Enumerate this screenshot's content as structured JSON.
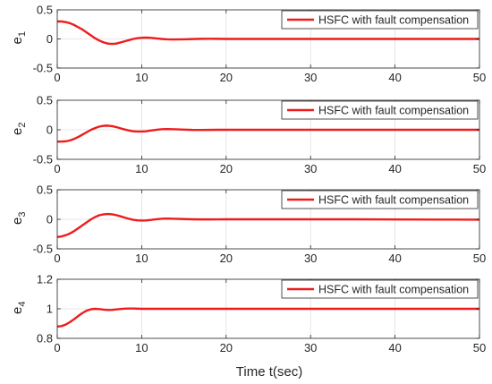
{
  "chart_data": [
    {
      "type": "line",
      "ylabel": "e",
      "ylabel_sub": "1",
      "xlim": [
        0,
        50
      ],
      "ylim": [
        -0.5,
        0.5
      ],
      "xticks": [
        "0",
        "10",
        "20",
        "30",
        "40",
        "50"
      ],
      "yticks": [
        "-0.5",
        "0",
        "0.5"
      ],
      "grid": true,
      "legend_position": "top-right",
      "series": [
        {
          "name": "HSFC with fault compensation",
          "color": "#ee1c1c",
          "x": [
            0,
            0.5,
            1,
            1.5,
            2,
            2.5,
            3,
            3.5,
            4,
            4.5,
            5,
            5.5,
            6,
            6.5,
            7,
            7.5,
            8,
            8.5,
            9,
            9.5,
            10,
            10.5,
            11,
            11.5,
            12,
            12.5,
            13,
            13.5,
            14,
            15,
            16,
            17,
            18,
            19,
            20,
            22,
            24,
            26,
            28,
            30,
            35,
            40,
            45,
            50
          ],
          "y": [
            0.3,
            0.3,
            0.29,
            0.27,
            0.24,
            0.2,
            0.16,
            0.11,
            0.06,
            0.01,
            -0.03,
            -0.06,
            -0.08,
            -0.085,
            -0.08,
            -0.06,
            -0.04,
            -0.02,
            0.0,
            0.012,
            0.02,
            0.023,
            0.02,
            0.013,
            0.005,
            -0.002,
            -0.007,
            -0.009,
            -0.009,
            -0.006,
            -0.002,
            0.002,
            0.003,
            0.002,
            0.0,
            0.0,
            0.0,
            0.0,
            0.0,
            0.0,
            0.0,
            0.0,
            0.0,
            0.0
          ]
        }
      ]
    },
    {
      "type": "line",
      "ylabel": "e",
      "ylabel_sub": "2",
      "xlim": [
        0,
        50
      ],
      "ylim": [
        -0.5,
        0.5
      ],
      "xticks": [
        "0",
        "10",
        "20",
        "30",
        "40",
        "50"
      ],
      "yticks": [
        "-0.5",
        "0",
        "0.5"
      ],
      "grid": true,
      "legend_position": "top-right",
      "series": [
        {
          "name": "HSFC with fault compensation",
          "color": "#ee1c1c",
          "x": [
            0,
            0.5,
            1,
            1.5,
            2,
            2.5,
            3,
            3.5,
            4,
            4.5,
            5,
            5.5,
            6,
            6.5,
            7,
            7.5,
            8,
            8.5,
            9,
            9.5,
            10,
            10.5,
            11,
            11.5,
            12,
            12.5,
            13,
            13.5,
            14,
            15,
            16,
            17,
            18,
            19,
            20,
            22,
            24,
            26,
            28,
            30,
            35,
            40,
            45,
            50
          ],
          "y": [
            -0.2,
            -0.2,
            -0.195,
            -0.18,
            -0.155,
            -0.12,
            -0.08,
            -0.04,
            0.0,
            0.03,
            0.055,
            0.068,
            0.07,
            0.062,
            0.045,
            0.025,
            0.005,
            -0.012,
            -0.025,
            -0.03,
            -0.03,
            -0.025,
            -0.015,
            -0.005,
            0.004,
            0.01,
            0.012,
            0.011,
            0.008,
            0.003,
            -0.002,
            -0.003,
            -0.002,
            0.0,
            0.0,
            0.0,
            0.0,
            0.0,
            0.0,
            0.0,
            0.0,
            0.0,
            0.0,
            0.0
          ]
        }
      ]
    },
    {
      "type": "line",
      "ylabel": "e",
      "ylabel_sub": "3",
      "xlim": [
        0,
        50
      ],
      "ylim": [
        -0.5,
        0.5
      ],
      "xticks": [
        "0",
        "10",
        "20",
        "30",
        "40",
        "50"
      ],
      "yticks": [
        "-0.5",
        "0",
        "0.5"
      ],
      "grid": true,
      "legend_position": "top-right",
      "series": [
        {
          "name": "HSFC with fault compensation",
          "color": "#ee1c1c",
          "x": [
            0,
            0.5,
            1,
            1.5,
            2,
            2.5,
            3,
            3.5,
            4,
            4.5,
            5,
            5.5,
            6,
            6.5,
            7,
            7.5,
            8,
            8.5,
            9,
            9.5,
            10,
            10.5,
            11,
            11.5,
            12,
            12.5,
            13,
            13.5,
            14,
            15,
            16,
            17,
            18,
            19,
            20,
            22,
            24,
            26,
            28,
            30,
            35,
            40,
            45,
            50
          ],
          "y": [
            -0.3,
            -0.29,
            -0.27,
            -0.24,
            -0.2,
            -0.15,
            -0.1,
            -0.05,
            0.0,
            0.04,
            0.07,
            0.085,
            0.09,
            0.085,
            0.07,
            0.05,
            0.028,
            0.008,
            -0.008,
            -0.018,
            -0.022,
            -0.02,
            -0.012,
            -0.003,
            0.005,
            0.01,
            0.012,
            0.011,
            0.009,
            0.004,
            0.0,
            -0.002,
            -0.002,
            -0.001,
            0.0,
            0.0,
            0.0,
            0.0,
            0.0,
            0.0,
            0.0,
            -0.003,
            -0.005,
            -0.006
          ]
        }
      ]
    },
    {
      "type": "line",
      "ylabel": "e",
      "ylabel_sub": "4",
      "xlim": [
        0,
        50
      ],
      "ylim": [
        0.8,
        1.2
      ],
      "xticks": [
        "0",
        "10",
        "20",
        "30",
        "40",
        "50"
      ],
      "yticks": [
        "0.8",
        "1",
        "1.2"
      ],
      "grid": true,
      "legend_position": "top-right",
      "series": [
        {
          "name": "HSFC with fault compensation",
          "color": "#ee1c1c",
          "x": [
            0,
            0.5,
            1,
            1.5,
            2,
            2.5,
            3,
            3.5,
            4,
            4.5,
            5,
            5.5,
            6,
            6.5,
            7,
            7.5,
            8,
            8.5,
            9,
            10,
            11,
            12,
            14,
            16,
            20,
            25,
            30,
            35,
            40,
            45,
            50
          ],
          "y": [
            0.88,
            0.883,
            0.893,
            0.91,
            0.93,
            0.952,
            0.972,
            0.988,
            0.997,
            1.0,
            0.998,
            0.994,
            0.992,
            0.993,
            0.996,
            0.999,
            1.001,
            1.002,
            1.002,
            1.0,
            1.0,
            1.0,
            1.0,
            1.0,
            1.0,
            1.0,
            1.0,
            1.0,
            1.0,
            1.0,
            1.0
          ]
        }
      ]
    }
  ],
  "xlabel": "Time t(sec)"
}
